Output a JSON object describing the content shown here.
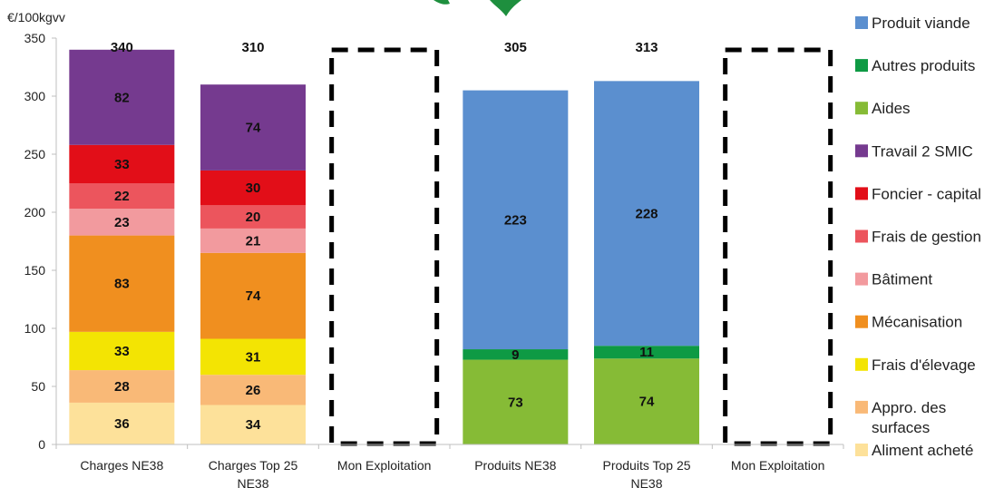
{
  "chart_data": {
    "type": "bar",
    "stacked": true,
    "ylabel": "€/100kgvv",
    "ylim": [
      0,
      350
    ],
    "yticks": [
      0,
      50,
      100,
      150,
      200,
      250,
      300,
      350
    ],
    "categories": [
      [
        "Charges NE38"
      ],
      [
        "Charges Top 25",
        "NE38"
      ],
      [
        "Mon Exploitation"
      ],
      [
        "Produits NE38"
      ],
      [
        "Produits Top 25",
        "NE38"
      ],
      [
        "Mon Exploitation"
      ]
    ],
    "totals": [
      "340",
      "310",
      "",
      "305",
      "313",
      ""
    ],
    "empty_dashed_categories": [
      2,
      5
    ],
    "grid": false,
    "legend_position": "right",
    "series": [
      {
        "name": "Produit viande",
        "color": "#5b8fcf",
        "values": [
          null,
          null,
          null,
          223,
          228,
          null
        ]
      },
      {
        "name": "Autres produits",
        "color": "#0e9a44",
        "values": [
          null,
          null,
          null,
          9,
          11,
          null
        ]
      },
      {
        "name": "Aides",
        "color": "#86bb36",
        "values": [
          null,
          null,
          null,
          73,
          74,
          null
        ]
      },
      {
        "name": "Travail 2 SMIC",
        "color": "#753a8f",
        "values": [
          82,
          74,
          null,
          null,
          null,
          null
        ]
      },
      {
        "name": "Foncier - capital",
        "color": "#e20e18",
        "values": [
          33,
          30,
          null,
          null,
          null,
          null
        ]
      },
      {
        "name": "Frais de gestion",
        "color": "#ec555d",
        "values": [
          22,
          20,
          null,
          null,
          null,
          null
        ]
      },
      {
        "name": "Bâtiment",
        "color": "#f29a9e",
        "values": [
          23,
          21,
          null,
          null,
          null,
          null
        ]
      },
      {
        "name": "Mécanisation",
        "color": "#f08f1f",
        "values": [
          83,
          74,
          null,
          null,
          null,
          null
        ]
      },
      {
        "name": "Frais d'élevage",
        "color": "#f3e403",
        "values": [
          33,
          31,
          null,
          null,
          null,
          null
        ]
      },
      {
        "name": "Appro. des surfaces",
        "color": "#f9b977",
        "values": [
          28,
          26,
          null,
          null,
          null,
          null
        ]
      },
      {
        "name": "Aliment acheté",
        "color": "#fde19a",
        "values": [
          36,
          34,
          null,
          null,
          null,
          null
        ]
      }
    ],
    "stack_order_bottom_to_top": [
      "Aliment acheté",
      "Appro. des surfaces",
      "Frais d'élevage",
      "Mécanisation",
      "Bâtiment",
      "Frais de gestion",
      "Foncier - capital",
      "Travail 2 SMIC",
      "Aides",
      "Autres produits",
      "Produit viande"
    ]
  },
  "legend": {
    "items": [
      {
        "label": "Produit viande",
        "lines": [
          "Produit viande"
        ],
        "color": "#5b8fcf"
      },
      {
        "label": "Autres produits",
        "lines": [
          "Autres produits"
        ],
        "color": "#0e9a44"
      },
      {
        "label": "Aides",
        "lines": [
          "Aides"
        ],
        "color": "#86bb36"
      },
      {
        "label": "Travail 2 SMIC",
        "lines": [
          "Travail 2 SMIC"
        ],
        "color": "#753a8f"
      },
      {
        "label": "Foncier - capital",
        "lines": [
          "Foncier - capital"
        ],
        "color": "#e20e18"
      },
      {
        "label": "Frais de gestion",
        "lines": [
          "Frais de gestion"
        ],
        "color": "#ec555d"
      },
      {
        "label": "Bâtiment",
        "lines": [
          "Bâtiment"
        ],
        "color": "#f29a9e"
      },
      {
        "label": "Mécanisation",
        "lines": [
          "Mécanisation"
        ],
        "color": "#f08f1f"
      },
      {
        "label": "Frais d'élevage",
        "lines": [
          "Frais d'élevage"
        ],
        "color": "#f3e403"
      },
      {
        "label": "Appro. des surfaces",
        "lines": [
          "Appro. des",
          "surfaces"
        ],
        "color": "#f9b977"
      },
      {
        "label": "Aliment acheté",
        "lines": [
          "Aliment acheté"
        ],
        "color": "#fde19a"
      }
    ]
  },
  "logo_color": "#1e8f3e"
}
